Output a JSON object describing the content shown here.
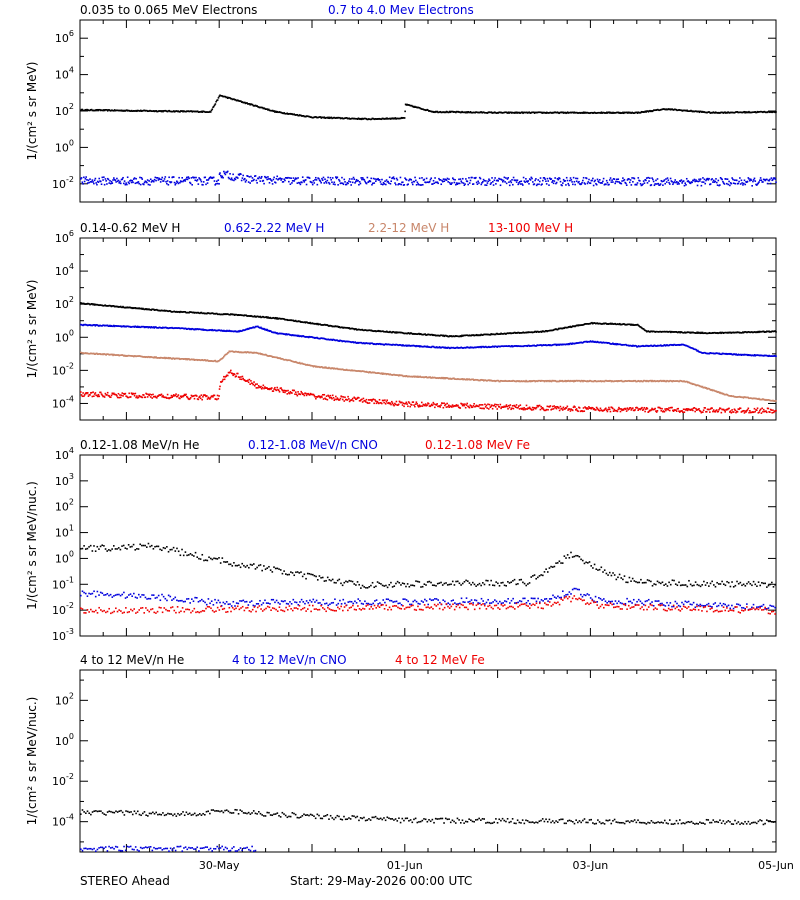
{
  "footer": {
    "spacecraft": "STEREO Ahead",
    "start": "Start: 29-May-2026 00:00 UTC"
  },
  "colors": {
    "black": "#000000",
    "blue": "#0000dd",
    "tan": "#c8866a",
    "red": "#ee0000"
  },
  "chart_data": [
    {
      "type": "scatter",
      "panel": "electrons",
      "ylabel": "1/(cm² s sr MeV)",
      "log_y": true,
      "ylim_exp": [
        -3,
        7
      ],
      "yticks_exp": [
        -2,
        0,
        2,
        4,
        6
      ],
      "x_range_days": [
        -0.5,
        7
      ],
      "xtick_labels": [
        "30-May",
        "01-Jun",
        "03-Jun",
        "05-Jun"
      ],
      "series": [
        {
          "name": "0.035 to 0.065 MeV Electrons",
          "color": "black",
          "points": [
            [
              -0.5,
              2.1
            ],
            [
              0.9,
              2.0
            ],
            [
              1.0,
              2.9
            ],
            [
              1.2,
              2.6
            ],
            [
              1.6,
              2.0
            ],
            [
              2.0,
              1.7
            ],
            [
              2.6,
              1.6
            ],
            [
              2.99,
              1.65
            ],
            [
              3.0,
              2.4
            ],
            [
              3.3,
              2.0
            ],
            [
              4,
              1.95
            ],
            [
              5.5,
              1.95
            ],
            [
              5.8,
              2.15
            ],
            [
              6.3,
              1.95
            ],
            [
              7,
              2.0
            ]
          ]
        },
        {
          "name": "0.7 to 4.0 Mev Electrons",
          "color": "blue",
          "points": [
            [
              -0.5,
              -1.8
            ],
            [
              0.99,
              -1.8
            ],
            [
              1.0,
              -1.4
            ],
            [
              1.3,
              -1.7
            ],
            [
              1.8,
              -1.8
            ],
            [
              7,
              -1.85
            ]
          ]
        }
      ]
    },
    {
      "type": "scatter",
      "panel": "protons",
      "ylabel": "1/(cm² s sr MeV)",
      "log_y": true,
      "ylim_exp": [
        -5,
        6
      ],
      "yticks_exp": [
        -4,
        -2,
        0,
        2,
        4,
        6
      ],
      "x_range_days": [
        -0.5,
        7
      ],
      "xtick_labels": [
        "30-May",
        "01-Jun",
        "03-Jun",
        "05-Jun"
      ],
      "series": [
        {
          "name": "0.14-0.62 MeV H",
          "color": "black",
          "points": [
            [
              -0.5,
              2.1
            ],
            [
              0.5,
              1.6
            ],
            [
              1.2,
              1.4
            ],
            [
              1.6,
              1.2
            ],
            [
              2.5,
              0.5
            ],
            [
              3.5,
              0.1
            ],
            [
              4.5,
              0.4
            ],
            [
              5.0,
              0.9
            ],
            [
              5.5,
              0.8
            ],
            [
              5.6,
              0.4
            ],
            [
              6.3,
              0.3
            ],
            [
              7,
              0.4
            ]
          ]
        },
        {
          "name": "0.62-2.22 MeV H",
          "color": "blue",
          "points": [
            [
              -0.5,
              0.8
            ],
            [
              0.5,
              0.6
            ],
            [
              1.2,
              0.4
            ],
            [
              1.4,
              0.7
            ],
            [
              1.6,
              0.3
            ],
            [
              2.5,
              -0.3
            ],
            [
              3.5,
              -0.6
            ],
            [
              4.7,
              -0.4
            ],
            [
              5.0,
              -0.2
            ],
            [
              5.5,
              -0.5
            ],
            [
              6.0,
              -0.4
            ],
            [
              6.2,
              -0.9
            ],
            [
              7,
              -1.1
            ]
          ]
        },
        {
          "name": "2.2-12 MeV H",
          "color": "tan",
          "points": [
            [
              -0.5,
              -0.9
            ],
            [
              0.99,
              -1.4
            ],
            [
              1.1,
              -0.8
            ],
            [
              1.4,
              -0.9
            ],
            [
              2.0,
              -1.7
            ],
            [
              3.0,
              -2.3
            ],
            [
              4.0,
              -2.6
            ],
            [
              5.5,
              -2.6
            ],
            [
              6.0,
              -2.6
            ],
            [
              6.5,
              -3.5
            ],
            [
              7,
              -3.8
            ]
          ]
        },
        {
          "name": "13-100 MeV H",
          "color": "red",
          "points": [
            [
              -0.5,
              -3.4
            ],
            [
              0.99,
              -3.6
            ],
            [
              1.0,
              -2.8
            ],
            [
              1.1,
              -2.0
            ],
            [
              1.4,
              -2.9
            ],
            [
              2.0,
              -3.5
            ],
            [
              3.0,
              -4.0
            ],
            [
              5.0,
              -4.3
            ],
            [
              7,
              -4.4
            ]
          ]
        }
      ]
    },
    {
      "type": "scatter",
      "panel": "heavy-low",
      "ylabel": "1/(cm² s sr MeV/nuc.)",
      "log_y": true,
      "ylim_exp": [
        -3,
        4
      ],
      "yticks_exp": [
        -3,
        -2,
        -1,
        0,
        1,
        2,
        3,
        4
      ],
      "x_range_days": [
        -0.5,
        7
      ],
      "xtick_labels": [
        "30-May",
        "01-Jun",
        "03-Jun",
        "05-Jun"
      ],
      "series": [
        {
          "name": "0.12-1.08 MeV/n He",
          "color": "black",
          "points": [
            [
              -0.5,
              0.4
            ],
            [
              0.3,
              0.5
            ],
            [
              0.9,
              0.0
            ],
            [
              1.4,
              -0.3
            ],
            [
              2.0,
              -0.7
            ],
            [
              2.5,
              -1.0
            ],
            [
              4.3,
              -0.9
            ],
            [
              4.8,
              0.2
            ],
            [
              5.2,
              -0.6
            ],
            [
              5.5,
              -0.9
            ],
            [
              7,
              -1.0
            ]
          ]
        },
        {
          "name": "0.12-1.08 MeV/n CNO",
          "color": "blue",
          "points": [
            [
              -0.5,
              -1.3
            ],
            [
              0.5,
              -1.5
            ],
            [
              1.0,
              -1.7
            ],
            [
              4.5,
              -1.6
            ],
            [
              4.8,
              -1.2
            ],
            [
              5.1,
              -1.6
            ],
            [
              7,
              -1.9
            ]
          ]
        },
        {
          "name": "0.12-1.08 MeV Fe",
          "color": "red",
          "points": [
            [
              -0.5,
              -2.0
            ],
            [
              4.5,
              -1.8
            ],
            [
              4.8,
              -1.5
            ],
            [
              5.1,
              -1.8
            ],
            [
              7,
              -2.0
            ]
          ]
        }
      ]
    },
    {
      "type": "scatter",
      "panel": "heavy-high",
      "ylabel": "1/(cm² s sr MeV/nuc.)",
      "log_y": true,
      "ylim_exp": [
        -5.5,
        3.5
      ],
      "yticks_exp": [
        -4,
        -2,
        0,
        2
      ],
      "x_range_days": [
        -0.5,
        7
      ],
      "xtick_labels": [
        "30-May",
        "01-Jun",
        "03-Jun",
        "05-Jun"
      ],
      "series": [
        {
          "name": "4 to 12 MeV/n He",
          "color": "black",
          "points": [
            [
              -0.5,
              -3.5
            ],
            [
              0.8,
              -3.6
            ],
            [
              1.0,
              -3.4
            ],
            [
              1.6,
              -3.6
            ],
            [
              3.0,
              -3.9
            ],
            [
              5.0,
              -3.95
            ],
            [
              7,
              -4.0
            ]
          ]
        },
        {
          "name": "4 to 12 MeV/n CNO",
          "color": "blue",
          "points": [
            [
              -0.5,
              -5.3
            ],
            [
              1.4,
              -5.3
            ]
          ]
        },
        {
          "name": "4 to 12 MeV Fe",
          "color": "red",
          "points": []
        }
      ]
    }
  ]
}
